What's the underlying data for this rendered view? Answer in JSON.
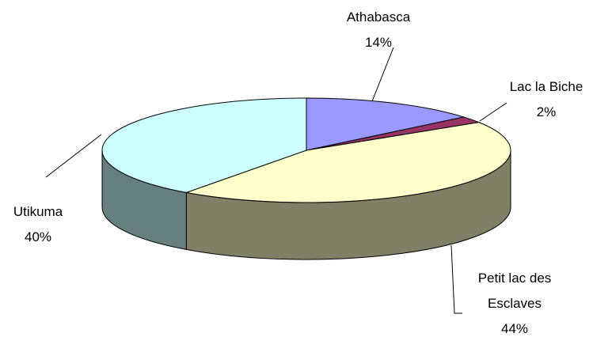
{
  "chart_data": {
    "type": "pie",
    "categories": [
      "Athabasca",
      "Lac la Biche",
      "Petit lac des Esclaves",
      "Utikuma"
    ],
    "values": [
      14,
      2,
      44,
      40
    ],
    "value_labels": [
      "14%",
      "2%",
      "44%",
      "40%"
    ],
    "colors": [
      "#9999ff",
      "#993366",
      "#ffffcc",
      "#ccffff"
    ]
  }
}
